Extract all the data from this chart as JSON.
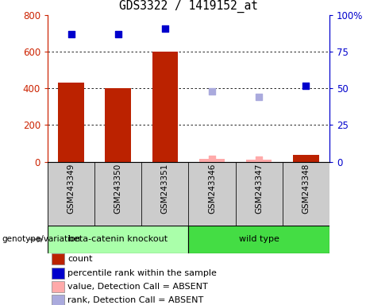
{
  "title": "GDS3322 / 1419152_at",
  "samples": [
    "GSM243349",
    "GSM243350",
    "GSM243351",
    "GSM243346",
    "GSM243347",
    "GSM243348"
  ],
  "groups": {
    "beta-catenin knockout": [
      0,
      1,
      2
    ],
    "wild type": [
      3,
      4,
      5
    ]
  },
  "group_labels": [
    "beta-catenin knockout",
    "wild type"
  ],
  "bar_heights": [
    430,
    400,
    600,
    15,
    10,
    35
  ],
  "bar_absent": [
    false,
    false,
    false,
    true,
    true,
    false
  ],
  "bar_color_present": "#bb2200",
  "bar_color_absent": "#ffaaaa",
  "blue_dot_values": [
    87,
    87,
    91,
    null,
    null,
    52
  ],
  "blue_dot_absent_values": [
    null,
    null,
    null,
    48,
    44,
    null
  ],
  "pink_dot_values": [
    null,
    null,
    null,
    15,
    10,
    null
  ],
  "ylim_left": [
    0,
    800
  ],
  "ylim_right": [
    0,
    100
  ],
  "yticks_left": [
    0,
    200,
    400,
    600,
    800
  ],
  "yticks_right": [
    0,
    25,
    50,
    75,
    100
  ],
  "left_axis_color": "#cc2200",
  "right_axis_color": "#0000cc",
  "grid_color": "#000000",
  "bg_gray": "#cccccc",
  "bg_green_light": "#aaffaa",
  "bg_green_bright": "#44dd44",
  "legend_items": [
    {
      "label": "count",
      "color": "#bb2200"
    },
    {
      "label": "percentile rank within the sample",
      "color": "#0000cc"
    },
    {
      "label": "value, Detection Call = ABSENT",
      "color": "#ffaaaa"
    },
    {
      "label": "rank, Detection Call = ABSENT",
      "color": "#aaaadd"
    }
  ]
}
